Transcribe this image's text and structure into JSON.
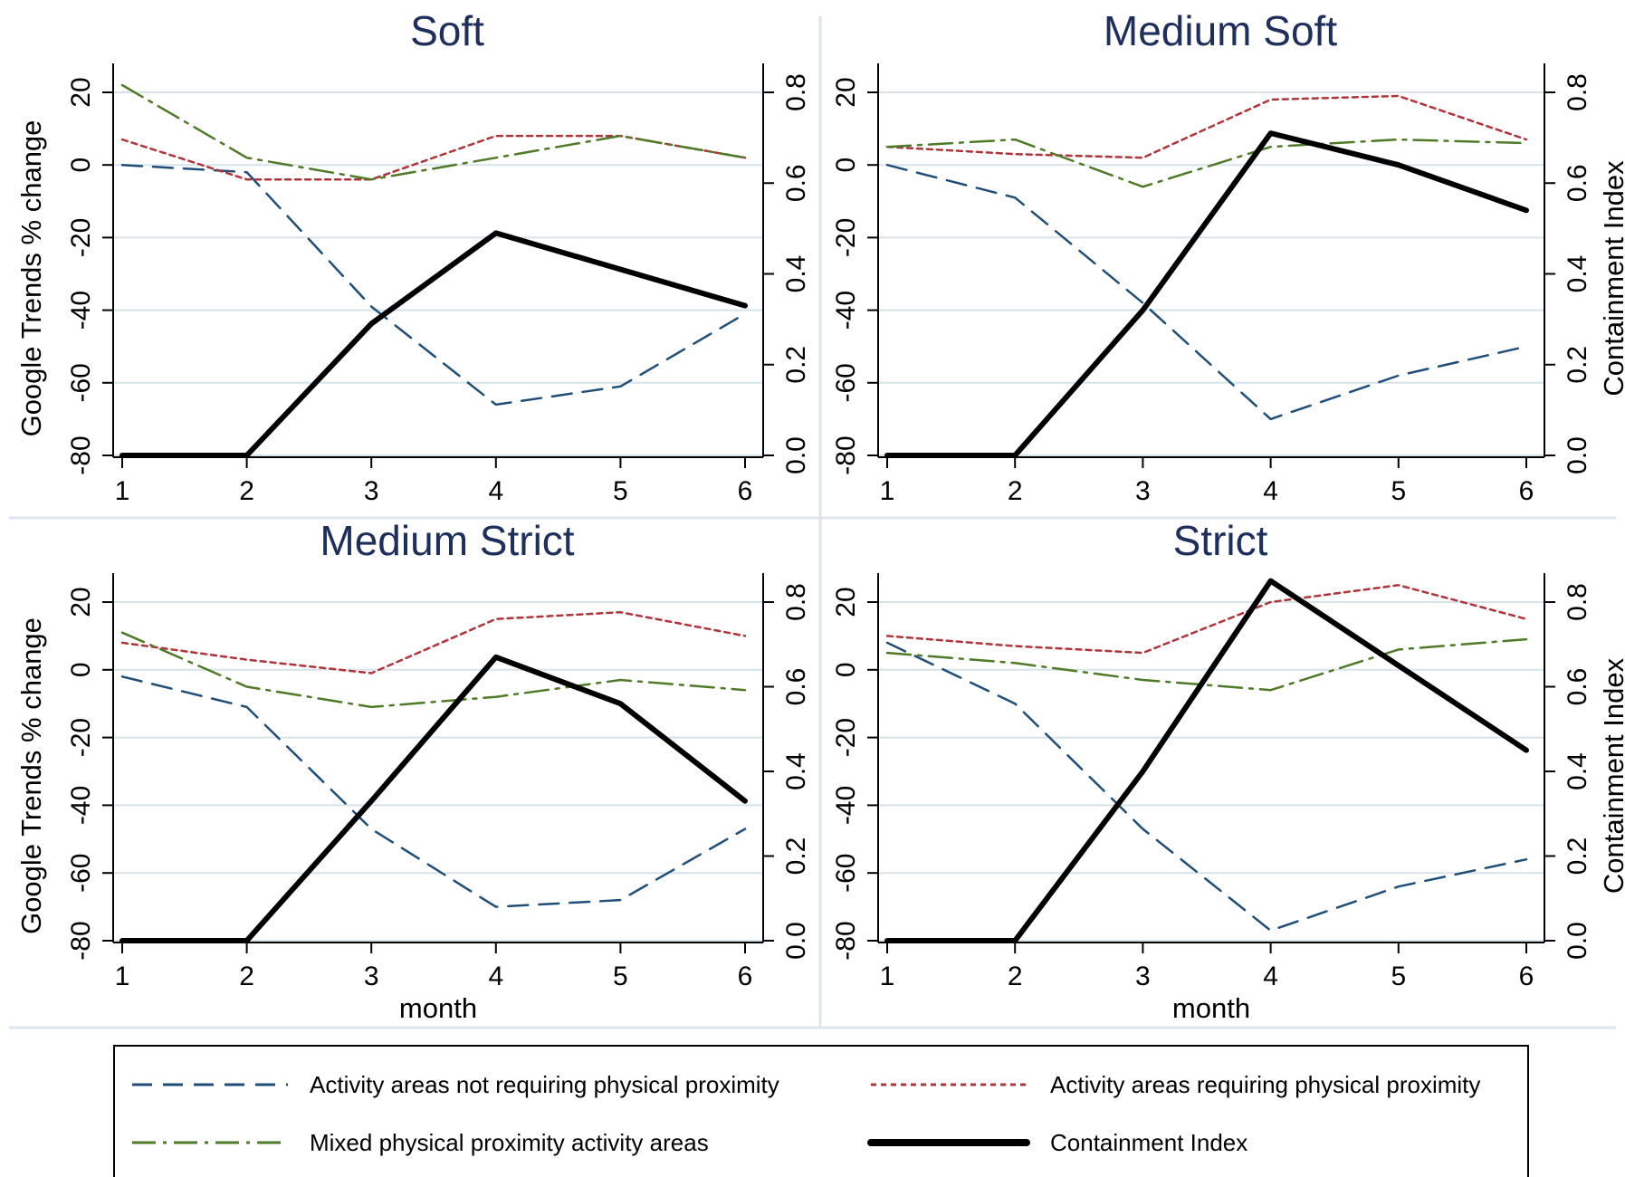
{
  "chart_data": {
    "type": "line",
    "colors": {
      "not_requiring": "#1f4e79",
      "requiring": "#b0353a",
      "mixed": "#4f7a28",
      "containment": "#000000",
      "title": "#1e2f5c",
      "grid": "#d7e3e8",
      "divider": "#dde6ec"
    },
    "left_axis": {
      "label": "Google Trends % change",
      "ylim": [
        -80,
        20
      ],
      "ticks": [
        20,
        0,
        -20,
        -40,
        -60,
        -80
      ]
    },
    "right_axis": {
      "label": "Containment Index",
      "ylim": [
        0,
        0.8
      ],
      "ticks": [
        "0.8",
        "0.6",
        "0.4",
        "0.2",
        "0.0"
      ]
    },
    "x": [
      1,
      2,
      3,
      4,
      5,
      6
    ],
    "xlabel": "month",
    "legend": {
      "not_requiring": "Activity areas not requiring physical proximity",
      "requiring": "Activity areas requiring physical proximity",
      "mixed": "Mixed physical proximity activity areas",
      "containment": "Containment Index"
    },
    "panels": [
      {
        "title": "Soft",
        "show_left_label": true,
        "show_right_label": false,
        "show_xlabel": false,
        "not_requiring": [
          0,
          -2,
          -39,
          -66,
          -61,
          -41
        ],
        "requiring": [
          7,
          -4,
          -4,
          8,
          8,
          2
        ],
        "mixed": [
          22,
          2,
          -4,
          2,
          8,
          2
        ],
        "containment": [
          0,
          0,
          0.29,
          0.49,
          0.41,
          0.33
        ]
      },
      {
        "title": "Medium Soft",
        "show_left_label": false,
        "show_right_label": true,
        "show_xlabel": false,
        "not_requiring": [
          0,
          -9,
          -38,
          -70,
          -58,
          -50
        ],
        "requiring": [
          5,
          3,
          2,
          18,
          19,
          7
        ],
        "mixed": [
          5,
          7,
          -6,
          5,
          7,
          6
        ],
        "containment": [
          0,
          0,
          0.32,
          0.71,
          0.64,
          0.54
        ]
      },
      {
        "title": "Medium Strict",
        "show_left_label": true,
        "show_right_label": false,
        "show_xlabel": true,
        "not_requiring": [
          -2,
          -11,
          -47,
          -70,
          -68,
          -47
        ],
        "requiring": [
          8,
          3,
          -1,
          15,
          17,
          10
        ],
        "mixed": [
          11,
          -5,
          -11,
          -8,
          -3,
          -6
        ],
        "containment": [
          0,
          0,
          0.33,
          0.67,
          0.56,
          0.33
        ]
      },
      {
        "title": "Strict",
        "show_left_label": false,
        "show_right_label": true,
        "show_xlabel": true,
        "not_requiring": [
          8,
          -10,
          -47,
          -77,
          -64,
          -56
        ],
        "requiring": [
          10,
          7,
          5,
          20,
          25,
          15
        ],
        "mixed": [
          5,
          2,
          -3,
          -6,
          6,
          9
        ],
        "containment": [
          0,
          0,
          0.4,
          0.85,
          0.65,
          0.45
        ]
      }
    ]
  }
}
